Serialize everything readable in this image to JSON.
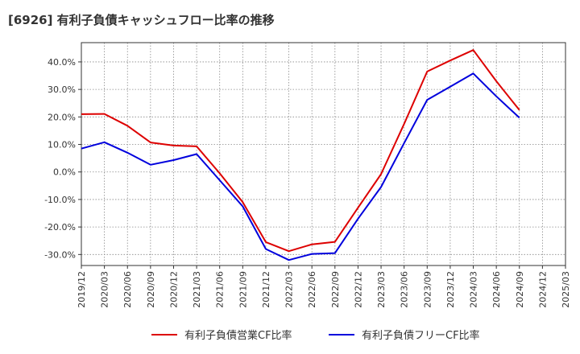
{
  "chart_data": {
    "type": "line",
    "title": "[6926]  有利子負債キャッシュフロー比率の推移",
    "xlabel": "",
    "ylabel": "",
    "x": [
      "2019/12",
      "2020/03",
      "2020/06",
      "2020/09",
      "2020/12",
      "2021/03",
      "2021/06",
      "2021/09",
      "2021/12",
      "2022/03",
      "2022/06",
      "2022/09",
      "2022/12",
      "2023/03",
      "2023/06",
      "2023/09",
      "2023/12",
      "2024/03",
      "2024/06",
      "2024/09",
      "2024/12",
      "2025/03"
    ],
    "y_ticks": [
      "40.0%",
      "30.0%",
      "20.0%",
      "10.0%",
      "0.0%",
      "-10.0%",
      "-20.0%",
      "-30.0%"
    ],
    "y_tick_values": [
      40,
      30,
      20,
      10,
      0,
      -10,
      -20,
      -30
    ],
    "ylim": [
      -34,
      47
    ],
    "grid": true,
    "legend_position": "bottom",
    "series": [
      {
        "name": "有利子負債営業CF比率",
        "color": "#dd0000",
        "values": [
          21.0,
          21.1,
          16.8,
          10.7,
          9.6,
          9.3,
          -0.5,
          -11.0,
          -25.5,
          -28.8,
          -26.3,
          -25.4,
          -13.0,
          -0.8,
          17.5,
          36.5,
          40.5,
          44.3,
          33.0,
          22.5,
          null,
          null
        ]
      },
      {
        "name": "有利子負債フリーCF比率",
        "color": "#0000dd",
        "values": [
          8.5,
          10.8,
          7.0,
          2.6,
          4.3,
          6.5,
          -3.0,
          -12.5,
          -28.0,
          -32.0,
          -29.8,
          -29.5,
          -17.0,
          -5.5,
          10.5,
          26.2,
          31.0,
          35.8,
          27.5,
          19.7,
          null,
          null
        ]
      }
    ]
  }
}
